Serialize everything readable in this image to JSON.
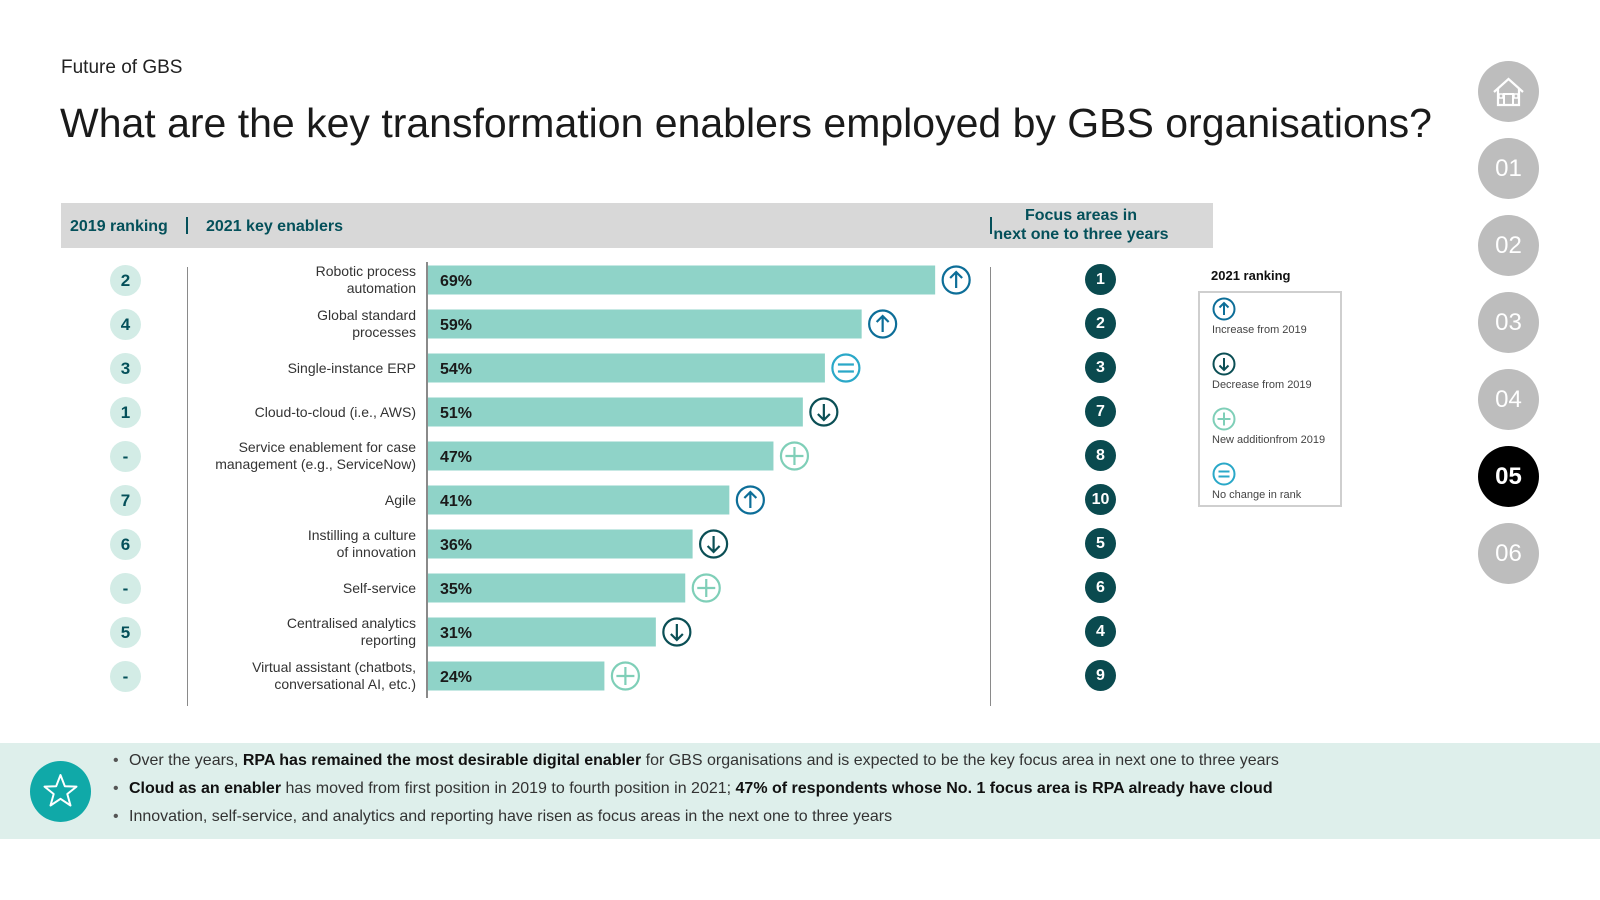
{
  "header": {
    "subtitle": "Future of GBS",
    "title": "What are the key transformation enablers employed by GBS organisations?"
  },
  "table_header": {
    "ranking_2019": "2019 ranking",
    "key_enablers_2021": "2021 key enablers",
    "focus_areas_line1": "Focus areas in",
    "focus_areas_line2": "next one to three years"
  },
  "legend": {
    "title": "2021 ranking",
    "items": [
      {
        "icon": "arrow-up-icon",
        "label": "Increase from 2019"
      },
      {
        "icon": "arrow-down-icon",
        "label": "Decrease from 2019"
      },
      {
        "icon": "plus-icon",
        "label": "New additionfrom 2019"
      },
      {
        "icon": "equal-icon",
        "label": "No change in rank"
      }
    ]
  },
  "chart_data": {
    "type": "bar",
    "orientation": "horizontal",
    "value_unit": "%",
    "categories": [
      [
        "Robotic process",
        "automation"
      ],
      [
        "Global standard",
        "processes"
      ],
      [
        "Single-instance ERP"
      ],
      [
        "Cloud-to-cloud (i.e., AWS)"
      ],
      [
        "Service enablement for case",
        "management (e.g., ServiceNow)"
      ],
      [
        "Agile"
      ],
      [
        "Instilling a culture",
        "of innovation"
      ],
      [
        "Self-service"
      ],
      [
        "Centralised analytics",
        "reporting"
      ],
      [
        "Virtual assistant (chatbots,",
        "conversational AI, etc.)"
      ]
    ],
    "values": [
      69,
      59,
      54,
      51,
      47,
      41,
      36,
      35,
      31,
      24
    ],
    "value_labels": [
      "69%",
      "59%",
      "54%",
      "51%",
      "47%",
      "41%",
      "36%",
      "35%",
      "31%",
      "24%"
    ],
    "rank_2019": [
      "2",
      "4",
      "3",
      "1",
      "-",
      "7",
      "6",
      "-",
      "5",
      "-"
    ],
    "rank_change": [
      "up",
      "up",
      "same",
      "down",
      "new",
      "up",
      "down",
      "new",
      "down",
      "new"
    ],
    "focus_rank": [
      "1",
      "2",
      "3",
      "7",
      "8",
      "10",
      "5",
      "6",
      "4",
      "9"
    ],
    "xlim": [
      0,
      100
    ]
  },
  "nav": {
    "home_icon": "home-icon",
    "items": [
      "01",
      "02",
      "03",
      "04",
      "05",
      "06"
    ],
    "active": "05"
  },
  "footer": {
    "icon": "star-icon",
    "bullets": [
      [
        {
          "t": "Over the years, ",
          "b": false
        },
        {
          "t": "RPA has remained the most desirable digital enabler",
          "b": true
        },
        {
          "t": " for GBS organisations and is expected to be the key focus area in next one to three years",
          "b": false
        }
      ],
      [
        {
          "t": "Cloud as an enabler",
          "b": true
        },
        {
          "t": " has moved from first position in 2019 to fourth position in 2021; ",
          "b": false
        },
        {
          "t": "47% of respondents whose No. 1 focus area is RPA already have cloud",
          "b": true
        }
      ],
      [
        {
          "t": "Innovation, self-service, and analytics and reporting have risen as focus areas in the next one to three years",
          "b": false
        }
      ]
    ]
  },
  "colors": {
    "bar": "#8fd3c8",
    "dark_teal": "#04505a",
    "up_icon": "#0d6e98",
    "down_icon": "#0b4f55",
    "new_icon": "#7fcfb8",
    "same_icon": "#2aa8c8",
    "footer_bg": "#deefeb",
    "star_bg": "#10a9a8"
  }
}
